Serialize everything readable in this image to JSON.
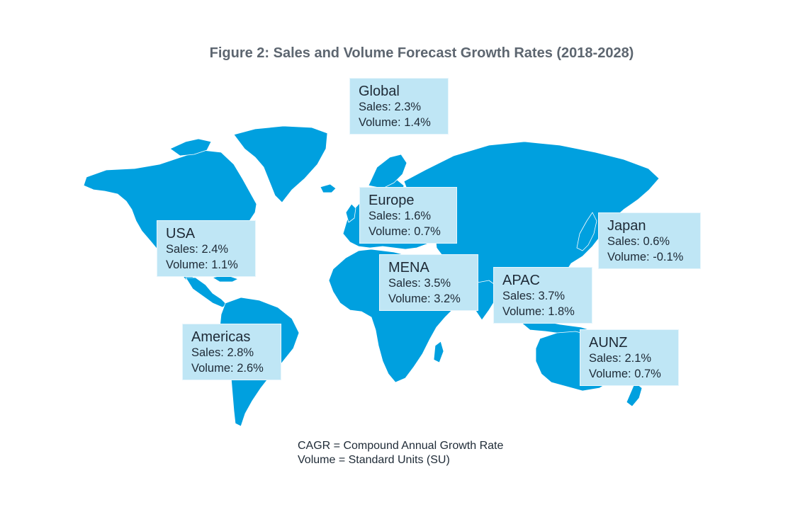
{
  "title": "Figure 2: Sales and Volume Forecast Growth Rates (2018-2028)",
  "map_color": "#00a0df",
  "box_color": "#bfe6f5",
  "regions": [
    {
      "name": "Global",
      "sales": "Sales: 2.3%",
      "volume": "Volume: 1.4%"
    },
    {
      "name": "Europe",
      "sales": "Sales: 1.6%",
      "volume": "Volume: 0.7%"
    },
    {
      "name": "USA",
      "sales": "Sales: 2.4%",
      "volume": "Volume: 1.1%"
    },
    {
      "name": "Japan",
      "sales": "Sales: 0.6%",
      "volume": "Volume: -0.1%"
    },
    {
      "name": "MENA",
      "sales": "Sales: 3.5%",
      "volume": "Volume: 3.2%"
    },
    {
      "name": "APAC",
      "sales": "Sales: 3.7%",
      "volume": "Volume: 1.8%"
    },
    {
      "name": "Americas",
      "sales": "Sales: 2.8%",
      "volume": "Volume: 2.6%"
    },
    {
      "name": "AUNZ",
      "sales": "Sales: 2.1%",
      "volume": "Volume: 0.7%"
    }
  ],
  "footnote": {
    "line1": "CAGR = Compound Annual Growth Rate",
    "line2": "Volume = Standard Units (SU)"
  }
}
